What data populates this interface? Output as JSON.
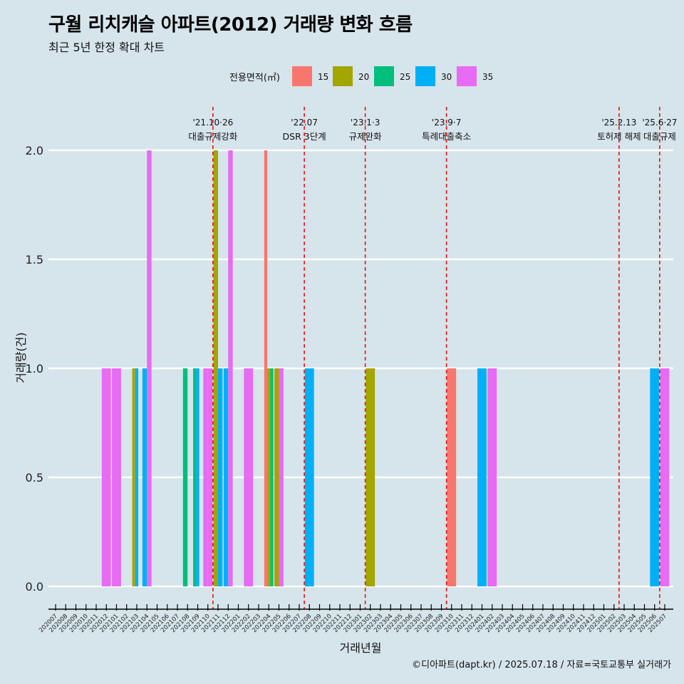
{
  "title": "구월 리치캐슬 아파트(2012) 거래량 변화 흐름",
  "subtitle": "최근 5년 한정 확대 차트",
  "caption": "©디아파트(dapt.kr) / 2025.07.18 / 자료=국토교통부 실거래가",
  "chart_data": {
    "type": "bar",
    "xlabel": "거래년월",
    "ylabel": "거래량(건)",
    "ylim": [
      0,
      2.0
    ],
    "yticks": [
      "0.0",
      "0.5",
      "1.0",
      "1.5",
      "2.0"
    ],
    "legend": {
      "title": "전용면적(㎡)",
      "position": "top",
      "items": [
        {
          "name": "15",
          "color": "#F8766D"
        },
        {
          "name": "20",
          "color": "#A3A500"
        },
        {
          "name": "25",
          "color": "#00BF7D"
        },
        {
          "name": "30",
          "color": "#00B0F6"
        },
        {
          "name": "35",
          "color": "#E76BF3"
        }
      ]
    },
    "categories": [
      "202007",
      "202008",
      "202009",
      "202010",
      "202011",
      "202012",
      "202101",
      "202102",
      "202103",
      "202104",
      "202105",
      "202106",
      "202107",
      "202108",
      "202109",
      "202110",
      "202111",
      "202112",
      "202201",
      "202202",
      "202203",
      "202204",
      "202205",
      "202206",
      "202207",
      "202208",
      "202209",
      "202210",
      "202211",
      "202212",
      "202301",
      "202302",
      "202303",
      "202304",
      "202305",
      "202306",
      "202307",
      "202308",
      "202309",
      "202310",
      "202311",
      "202312",
      "202401",
      "202402",
      "202403",
      "202404",
      "202405",
      "202406",
      "202407",
      "202408",
      "202409",
      "202410",
      "202411",
      "202412",
      "202501",
      "202502",
      "202503",
      "202504",
      "202505",
      "202506",
      "202507"
    ],
    "bars": [
      {
        "month": "202012",
        "series": [
          "35"
        ],
        "values": [
          1
        ]
      },
      {
        "month": "202101",
        "series": [
          "35"
        ],
        "values": [
          1
        ]
      },
      {
        "month": "202103",
        "series": [
          "20",
          "30",
          "35"
        ],
        "values": [
          1,
          1,
          0
        ]
      },
      {
        "month": "202104",
        "series": [
          "30",
          "35"
        ],
        "values": [
          1,
          2
        ]
      },
      {
        "month": "202108",
        "series": [
          "25",
          "30"
        ],
        "values": [
          1,
          0
        ]
      },
      {
        "month": "202109",
        "series": [
          "25",
          "30",
          "35"
        ],
        "values": [
          1,
          1,
          0
        ]
      },
      {
        "month": "202110",
        "series": [
          "35",
          "35"
        ],
        "values": [
          1,
          1
        ]
      },
      {
        "month": "202111",
        "series": [
          "20",
          "30"
        ],
        "values": [
          2,
          1
        ]
      },
      {
        "month": "202112",
        "series": [
          "30",
          "35"
        ],
        "values": [
          1,
          2
        ]
      },
      {
        "month": "202202",
        "series": [
          "35"
        ],
        "values": [
          1
        ]
      },
      {
        "month": "202204",
        "series": [
          "15",
          "20",
          "25"
        ],
        "values": [
          2,
          1,
          1
        ]
      },
      {
        "month": "202205",
        "series": [
          "20",
          "35"
        ],
        "values": [
          1,
          1
        ]
      },
      {
        "month": "202208",
        "series": [
          "30"
        ],
        "values": [
          1
        ]
      },
      {
        "month": "202302",
        "series": [
          "20"
        ],
        "values": [
          1
        ]
      },
      {
        "month": "202310",
        "series": [
          "15"
        ],
        "values": [
          1
        ]
      },
      {
        "month": "202401",
        "series": [
          "30"
        ],
        "values": [
          1
        ]
      },
      {
        "month": "202402",
        "series": [
          "35"
        ],
        "values": [
          1
        ]
      },
      {
        "month": "202506",
        "series": [
          "30"
        ],
        "values": [
          1
        ]
      },
      {
        "month": "202507",
        "series": [
          "35"
        ],
        "values": [
          1
        ]
      }
    ],
    "annotations": [
      {
        "month": "202110",
        "line1": "'21.10·26",
        "line2": "대출규제강화"
      },
      {
        "month": "202207",
        "line1": "'22.07",
        "line2": "DSR 3단계"
      },
      {
        "month": "202301",
        "line1": "'23.1·3",
        "line2": "규제완화"
      },
      {
        "month": "202309",
        "line1": "'23.9·7",
        "line2": "특례대출축소"
      },
      {
        "month": "202502",
        "line1": "'25.2.13",
        "line2": "토허제 해제"
      },
      {
        "month": "202506",
        "line1": "'25.6·27",
        "line2": "대출규제"
      }
    ],
    "grid": true
  }
}
